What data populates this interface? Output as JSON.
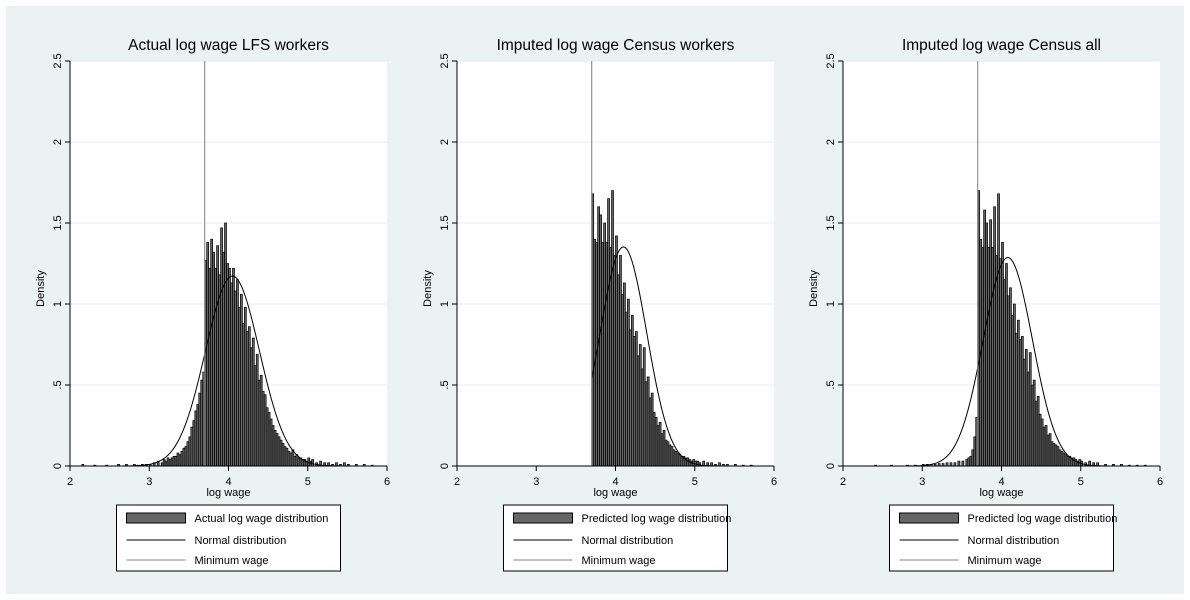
{
  "colors": {
    "background": "#eaf2f3",
    "plot_area": "#ffffff",
    "bar_fill": "#666666",
    "bar_edge": "#000000",
    "normal_line": "#000000",
    "minwage_line": "#808080",
    "grid": "#e6ecef"
  },
  "chart_data": [
    {
      "type": "bar",
      "title": "Actual log wage LFS workers",
      "xlabel": "log wage",
      "ylabel": "Density",
      "xlim": [
        2,
        6
      ],
      "ylim": [
        0,
        2.5
      ],
      "xticks": [
        2,
        3,
        4,
        5,
        6
      ],
      "xtick_labels": [
        "2",
        "3",
        "4",
        "5",
        "6"
      ],
      "yticks": [
        0,
        0.5,
        1,
        1.5,
        2,
        2.5
      ],
      "ytick_labels": [
        "0",
        ".5",
        "1",
        "1.5",
        "2",
        "2.5"
      ],
      "grid": true,
      "legend_position": "bottom",
      "legend": [
        "Actual log wage distribution",
        "Normal distribution",
        "Minimum wage"
      ],
      "minimum_wage": 3.7,
      "normal": {
        "mean": 4.05,
        "sd": 0.34
      },
      "hist_bin_width": 0.025,
      "hist_bins": [
        [
          2.15,
          0.01
        ],
        [
          2.3,
          0.005
        ],
        [
          2.45,
          0.005
        ],
        [
          2.6,
          0.01
        ],
        [
          2.7,
          0.01
        ],
        [
          2.8,
          0.01
        ],
        [
          2.85,
          0.005
        ],
        [
          2.9,
          0.01
        ],
        [
          2.95,
          0.01
        ],
        [
          3.0,
          0.01
        ],
        [
          3.05,
          0.02
        ],
        [
          3.1,
          0.03
        ],
        [
          3.15,
          0.02
        ],
        [
          3.175,
          0.04
        ],
        [
          3.2,
          0.03
        ],
        [
          3.225,
          0.05
        ],
        [
          3.25,
          0.04
        ],
        [
          3.275,
          0.05
        ],
        [
          3.3,
          0.06
        ],
        [
          3.325,
          0.06
        ],
        [
          3.35,
          0.08
        ],
        [
          3.375,
          0.07
        ],
        [
          3.4,
          0.09
        ],
        [
          3.425,
          0.11
        ],
        [
          3.45,
          0.12
        ],
        [
          3.475,
          0.15
        ],
        [
          3.5,
          0.18
        ],
        [
          3.525,
          0.24
        ],
        [
          3.55,
          0.28
        ],
        [
          3.575,
          0.34
        ],
        [
          3.6,
          0.38
        ],
        [
          3.625,
          0.45
        ],
        [
          3.65,
          0.53
        ],
        [
          3.675,
          0.58
        ],
        [
          3.7,
          1.27
        ],
        [
          3.725,
          1.38
        ],
        [
          3.75,
          1.22
        ],
        [
          3.775,
          1.4
        ],
        [
          3.8,
          1.32
        ],
        [
          3.825,
          1.22
        ],
        [
          3.85,
          1.36
        ],
        [
          3.875,
          1.18
        ],
        [
          3.9,
          1.47
        ],
        [
          3.925,
          1.32
        ],
        [
          3.95,
          1.5
        ],
        [
          3.975,
          1.25
        ],
        [
          4.0,
          1.22
        ],
        [
          4.025,
          1.13
        ],
        [
          4.05,
          1.22
        ],
        [
          4.075,
          1.08
        ],
        [
          4.1,
          1.15
        ],
        [
          4.125,
          0.98
        ],
        [
          4.15,
          1.06
        ],
        [
          4.175,
          0.88
        ],
        [
          4.2,
          0.98
        ],
        [
          4.225,
          0.83
        ],
        [
          4.25,
          0.86
        ],
        [
          4.275,
          0.73
        ],
        [
          4.3,
          0.79
        ],
        [
          4.325,
          0.62
        ],
        [
          4.35,
          0.69
        ],
        [
          4.375,
          0.53
        ],
        [
          4.4,
          0.56
        ],
        [
          4.425,
          0.46
        ],
        [
          4.45,
          0.44
        ],
        [
          4.475,
          0.36
        ],
        [
          4.5,
          0.33
        ],
        [
          4.525,
          0.29
        ],
        [
          4.55,
          0.25
        ],
        [
          4.575,
          0.22
        ],
        [
          4.6,
          0.2
        ],
        [
          4.625,
          0.18
        ],
        [
          4.65,
          0.16
        ],
        [
          4.675,
          0.14
        ],
        [
          4.7,
          0.12
        ],
        [
          4.725,
          0.11
        ],
        [
          4.75,
          0.09
        ],
        [
          4.775,
          0.08
        ],
        [
          4.8,
          0.1
        ],
        [
          4.825,
          0.06
        ],
        [
          4.85,
          0.07
        ],
        [
          4.875,
          0.05
        ],
        [
          4.9,
          0.05
        ],
        [
          4.925,
          0.04
        ],
        [
          4.95,
          0.04
        ],
        [
          4.975,
          0.03
        ],
        [
          5.0,
          0.05
        ],
        [
          5.025,
          0.03
        ],
        [
          5.05,
          0.04
        ],
        [
          5.1,
          0.02
        ],
        [
          5.15,
          0.03
        ],
        [
          5.2,
          0.02
        ],
        [
          5.25,
          0.02
        ],
        [
          5.3,
          0.01
        ],
        [
          5.35,
          0.02
        ],
        [
          5.4,
          0.01
        ],
        [
          5.45,
          0.02
        ],
        [
          5.5,
          0.01
        ],
        [
          5.6,
          0.01
        ],
        [
          5.7,
          0.01
        ],
        [
          5.8,
          0.005
        ]
      ]
    },
    {
      "type": "bar",
      "title": "Imputed log wage Census workers",
      "xlabel": "log wage",
      "ylabel": "Density",
      "xlim": [
        2,
        6
      ],
      "ylim": [
        0,
        2.5
      ],
      "xticks": [
        2,
        3,
        4,
        5,
        6
      ],
      "xtick_labels": [
        "2",
        "3",
        "4",
        "5",
        "6"
      ],
      "yticks": [
        0,
        0.5,
        1,
        1.5,
        2,
        2.5
      ],
      "ytick_labels": [
        "0",
        ".5",
        "1",
        "1.5",
        "2",
        "2.5"
      ],
      "grid": true,
      "legend_position": "bottom",
      "legend": [
        "Predicted log wage distribution",
        "Normal distribution",
        "Minimum wage"
      ],
      "minimum_wage": 3.7,
      "normal": {
        "mean": 4.1,
        "sd": 0.295
      },
      "normal_xrange": [
        3.7,
        6
      ],
      "hist_bin_width": 0.025,
      "hist_bins": [
        [
          3.7,
          1.68
        ],
        [
          3.725,
          1.4
        ],
        [
          3.75,
          1.38
        ],
        [
          3.775,
          1.6
        ],
        [
          3.8,
          1.55
        ],
        [
          3.825,
          1.38
        ],
        [
          3.85,
          1.5
        ],
        [
          3.875,
          1.38
        ],
        [
          3.9,
          1.65
        ],
        [
          3.925,
          1.35
        ],
        [
          3.95,
          1.7
        ],
        [
          3.975,
          1.3
        ],
        [
          4.0,
          1.42
        ],
        [
          4.025,
          1.18
        ],
        [
          4.05,
          1.3
        ],
        [
          4.075,
          1.06
        ],
        [
          4.1,
          1.13
        ],
        [
          4.125,
          0.95
        ],
        [
          4.15,
          1.03
        ],
        [
          4.175,
          0.84
        ],
        [
          4.2,
          0.93
        ],
        [
          4.225,
          0.8
        ],
        [
          4.25,
          0.83
        ],
        [
          4.275,
          0.68
        ],
        [
          4.3,
          0.75
        ],
        [
          4.325,
          0.6
        ],
        [
          4.35,
          0.73
        ],
        [
          4.375,
          0.52
        ],
        [
          4.4,
          0.55
        ],
        [
          4.425,
          0.42
        ],
        [
          4.45,
          0.45
        ],
        [
          4.475,
          0.33
        ],
        [
          4.5,
          0.3
        ],
        [
          4.525,
          0.25
        ],
        [
          4.55,
          0.27
        ],
        [
          4.575,
          0.2
        ],
        [
          4.6,
          0.22
        ],
        [
          4.625,
          0.16
        ],
        [
          4.65,
          0.15
        ],
        [
          4.675,
          0.13
        ],
        [
          4.7,
          0.12
        ],
        [
          4.725,
          0.1
        ],
        [
          4.75,
          0.09
        ],
        [
          4.775,
          0.08
        ],
        [
          4.8,
          0.07
        ],
        [
          4.825,
          0.06
        ],
        [
          4.85,
          0.06
        ],
        [
          4.875,
          0.05
        ],
        [
          4.9,
          0.05
        ],
        [
          4.925,
          0.04
        ],
        [
          4.95,
          0.03
        ],
        [
          4.975,
          0.04
        ],
        [
          5.0,
          0.03
        ],
        [
          5.025,
          0.03
        ],
        [
          5.05,
          0.02
        ],
        [
          5.1,
          0.03
        ],
        [
          5.15,
          0.02
        ],
        [
          5.2,
          0.02
        ],
        [
          5.25,
          0.01
        ],
        [
          5.3,
          0.02
        ],
        [
          5.35,
          0.01
        ],
        [
          5.4,
          0.01
        ],
        [
          5.5,
          0.01
        ],
        [
          5.6,
          0.005
        ],
        [
          5.7,
          0.005
        ]
      ]
    },
    {
      "type": "bar",
      "title": "Imputed log wage Census all",
      "xlabel": "log wage",
      "ylabel": "Density",
      "xlim": [
        2,
        6
      ],
      "ylim": [
        0,
        2.5
      ],
      "xticks": [
        2,
        3,
        4,
        5,
        6
      ],
      "xtick_labels": [
        "2",
        "3",
        "4",
        "5",
        "6"
      ],
      "yticks": [
        0,
        0.5,
        1,
        1.5,
        2,
        2.5
      ],
      "ytick_labels": [
        "0",
        ".5",
        "1",
        "1.5",
        "2",
        "2.5"
      ],
      "grid": true,
      "legend_position": "bottom",
      "legend": [
        "Predicted log wage distribution",
        "Normal distribution",
        "Minimum wage"
      ],
      "minimum_wage": 3.7,
      "normal": {
        "mean": 4.08,
        "sd": 0.31
      },
      "hist_bin_width": 0.025,
      "hist_bins": [
        [
          2.4,
          0.005
        ],
        [
          2.6,
          0.005
        ],
        [
          2.8,
          0.005
        ],
        [
          2.9,
          0.005
        ],
        [
          3.0,
          0.01
        ],
        [
          3.05,
          0.01
        ],
        [
          3.1,
          0.01
        ],
        [
          3.15,
          0.01
        ],
        [
          3.2,
          0.015
        ],
        [
          3.25,
          0.015
        ],
        [
          3.3,
          0.02
        ],
        [
          3.35,
          0.02
        ],
        [
          3.4,
          0.02
        ],
        [
          3.45,
          0.03
        ],
        [
          3.5,
          0.03
        ],
        [
          3.55,
          0.04
        ],
        [
          3.575,
          0.05
        ],
        [
          3.6,
          0.06
        ],
        [
          3.625,
          0.1
        ],
        [
          3.65,
          0.18
        ],
        [
          3.675,
          0.3
        ],
        [
          3.7,
          1.7
        ],
        [
          3.725,
          1.4
        ],
        [
          3.75,
          1.35
        ],
        [
          3.775,
          1.58
        ],
        [
          3.8,
          1.5
        ],
        [
          3.825,
          1.35
        ],
        [
          3.85,
          1.52
        ],
        [
          3.875,
          1.35
        ],
        [
          3.9,
          1.6
        ],
        [
          3.925,
          1.3
        ],
        [
          3.95,
          1.68
        ],
        [
          3.975,
          1.28
        ],
        [
          4.0,
          1.38
        ],
        [
          4.025,
          1.15
        ],
        [
          4.05,
          1.25
        ],
        [
          4.075,
          1.05
        ],
        [
          4.1,
          1.1
        ],
        [
          4.125,
          0.93
        ],
        [
          4.15,
          1.0
        ],
        [
          4.175,
          0.82
        ],
        [
          4.2,
          0.9
        ],
        [
          4.225,
          0.78
        ],
        [
          4.25,
          0.8
        ],
        [
          4.275,
          0.66
        ],
        [
          4.3,
          0.72
        ],
        [
          4.325,
          0.58
        ],
        [
          4.35,
          0.7
        ],
        [
          4.375,
          0.5
        ],
        [
          4.4,
          0.53
        ],
        [
          4.425,
          0.4
        ],
        [
          4.45,
          0.43
        ],
        [
          4.475,
          0.32
        ],
        [
          4.5,
          0.29
        ],
        [
          4.525,
          0.24
        ],
        [
          4.55,
          0.25
        ],
        [
          4.575,
          0.19
        ],
        [
          4.6,
          0.2
        ],
        [
          4.625,
          0.15
        ],
        [
          4.65,
          0.14
        ],
        [
          4.675,
          0.13
        ],
        [
          4.7,
          0.12
        ],
        [
          4.725,
          0.1
        ],
        [
          4.75,
          0.09
        ],
        [
          4.775,
          0.08
        ],
        [
          4.8,
          0.07
        ],
        [
          4.825,
          0.06
        ],
        [
          4.85,
          0.06
        ],
        [
          4.875,
          0.05
        ],
        [
          4.9,
          0.05
        ],
        [
          4.925,
          0.04
        ],
        [
          4.95,
          0.03
        ],
        [
          4.975,
          0.04
        ],
        [
          5.0,
          0.03
        ],
        [
          5.05,
          0.02
        ],
        [
          5.1,
          0.03
        ],
        [
          5.15,
          0.02
        ],
        [
          5.2,
          0.02
        ],
        [
          5.3,
          0.01
        ],
        [
          5.4,
          0.01
        ],
        [
          5.5,
          0.01
        ],
        [
          5.6,
          0.005
        ],
        [
          5.7,
          0.005
        ],
        [
          5.8,
          0.005
        ]
      ]
    }
  ]
}
